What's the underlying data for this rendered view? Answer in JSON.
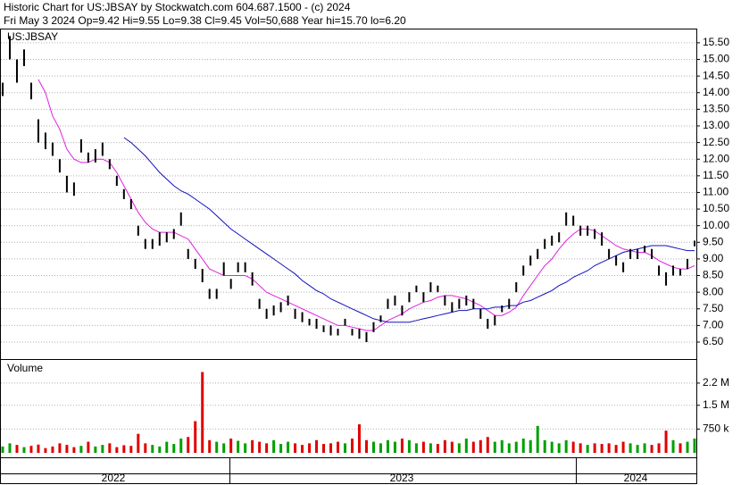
{
  "chart_data": [
    {
      "type": "hilo",
      "title": "Historic Chart for US:JBSAY by Stockwatch.com 604.687.1500 - (c) 2024",
      "subtitle": "Fri May  3 2024  Op=9.42  Hi=9.55  Lo=9.38  Cl=9.45  Vol=50,688  Year hi=15.70  lo=6.20",
      "label": "US:JBSAY",
      "x_labels": [
        "2022",
        "2023",
        "2024"
      ],
      "color": "#000000",
      "high": [
        14.3,
        15.7,
        15.0,
        15.3,
        14.3,
        13.2,
        12.8,
        12.5,
        12.0,
        11.5,
        11.3,
        12.6,
        12.2,
        12.3,
        12.5,
        12.0,
        11.5,
        11.1,
        10.8,
        10.0,
        9.6,
        9.6,
        9.8,
        9.8,
        9.9,
        10.4,
        9.3,
        9.0,
        8.7,
        8.1,
        8.1,
        8.9,
        8.4,
        8.9,
        8.9,
        8.6,
        7.8,
        7.5,
        7.6,
        7.7,
        7.9,
        7.5,
        7.4,
        7.2,
        7.2,
        7.0,
        7.0,
        6.9,
        7.2,
        6.9,
        6.9,
        6.8,
        7.1,
        7.3,
        7.8,
        7.9,
        7.6,
        8.0,
        8.2,
        8.0,
        8.3,
        8.2,
        7.9,
        7.7,
        7.8,
        7.9,
        7.8,
        7.5,
        7.2,
        7.3,
        7.6,
        7.8,
        8.3,
        8.8,
        9.1,
        9.3,
        9.6,
        9.7,
        9.8,
        10.4,
        10.3,
        10.0,
        10.0,
        9.9,
        9.8,
        9.3,
        9.1,
        8.9,
        9.3,
        9.3,
        9.4,
        9.3,
        8.8,
        8.6,
        8.8,
        8.7,
        9.0,
        9.55
      ],
      "low": [
        13.9,
        15.0,
        14.3,
        14.8,
        13.8,
        12.5,
        12.3,
        12.1,
        11.6,
        11.0,
        10.9,
        12.2,
        11.9,
        11.9,
        12.1,
        11.7,
        11.2,
        10.8,
        10.5,
        9.7,
        9.3,
        9.3,
        9.4,
        9.5,
        9.6,
        10.0,
        9.0,
        8.7,
        8.3,
        7.8,
        7.8,
        8.5,
        8.1,
        8.6,
        8.6,
        8.2,
        7.5,
        7.2,
        7.3,
        7.4,
        7.6,
        7.2,
        7.1,
        7.0,
        6.9,
        6.8,
        6.7,
        6.7,
        7.0,
        6.7,
        6.6,
        6.5,
        6.8,
        7.1,
        7.5,
        7.6,
        7.3,
        7.7,
        8.0,
        7.7,
        8.0,
        8.0,
        7.6,
        7.4,
        7.5,
        7.6,
        7.5,
        7.2,
        6.9,
        7.0,
        7.4,
        7.5,
        8.0,
        8.5,
        8.8,
        9.0,
        9.3,
        9.4,
        9.5,
        10.0,
        10.0,
        9.7,
        9.7,
        9.6,
        9.4,
        9.0,
        8.8,
        8.6,
        9.0,
        9.0,
        9.2,
        9.0,
        8.5,
        8.2,
        8.5,
        8.5,
        8.7,
        9.38
      ],
      "series": [
        {
          "color": "#e020e0",
          "values": [
            null,
            null,
            null,
            null,
            null,
            14.4,
            14.0,
            13.3,
            12.9,
            12.3,
            12.0,
            11.9,
            11.9,
            12.0,
            12.0,
            11.9,
            11.6,
            11.2,
            10.8,
            10.4,
            10.1,
            9.9,
            9.8,
            9.8,
            9.8,
            9.7,
            9.6,
            9.3,
            9.0,
            8.7,
            8.6,
            8.5,
            8.5,
            8.5,
            8.5,
            8.4,
            8.2,
            8.0,
            7.9,
            7.8,
            7.7,
            7.6,
            7.5,
            7.4,
            7.3,
            7.2,
            7.1,
            7.0,
            7.0,
            6.95,
            6.9,
            6.85,
            6.85,
            7.0,
            7.15,
            7.25,
            7.35,
            7.5,
            7.6,
            7.7,
            7.75,
            7.85,
            7.9,
            7.9,
            7.85,
            7.8,
            7.7,
            7.6,
            7.45,
            7.3,
            7.3,
            7.4,
            7.55,
            7.9,
            8.2,
            8.5,
            8.8,
            9.0,
            9.3,
            9.55,
            9.75,
            9.9,
            9.9,
            9.85,
            9.7,
            9.55,
            9.4,
            9.3,
            9.25,
            9.2,
            9.2,
            9.1,
            8.95,
            8.85,
            8.75,
            8.7,
            8.7,
            8.8
          ]
        },
        {
          "color": "#1010c0",
          "values": [
            null,
            null,
            null,
            null,
            null,
            null,
            null,
            null,
            null,
            null,
            null,
            null,
            null,
            null,
            null,
            null,
            null,
            12.65,
            12.5,
            12.3,
            12.1,
            11.85,
            11.6,
            11.4,
            11.2,
            11.05,
            10.95,
            10.8,
            10.65,
            10.5,
            10.3,
            10.1,
            9.9,
            9.75,
            9.6,
            9.45,
            9.3,
            9.15,
            9.0,
            8.85,
            8.7,
            8.55,
            8.35,
            8.2,
            8.05,
            7.95,
            7.8,
            7.7,
            7.6,
            7.5,
            7.4,
            7.3,
            7.2,
            7.15,
            7.1,
            7.1,
            7.1,
            7.1,
            7.15,
            7.2,
            7.25,
            7.3,
            7.35,
            7.4,
            7.45,
            7.45,
            7.5,
            7.5,
            7.5,
            7.55,
            7.55,
            7.6,
            7.6,
            7.7,
            7.75,
            7.85,
            7.95,
            8.05,
            8.2,
            8.3,
            8.45,
            8.55,
            8.65,
            8.8,
            8.9,
            9.0,
            9.1,
            9.2,
            9.25,
            9.3,
            9.35,
            9.4,
            9.4,
            9.4,
            9.35,
            9.3,
            9.25,
            9.25
          ]
        }
      ],
      "ylim": [
        5.99,
        15.9
      ],
      "yticks": [
        {
          "value": 6.5,
          "label": "6.50"
        },
        {
          "value": 7,
          "label": "7.00"
        },
        {
          "value": 7.5,
          "label": "7.50"
        },
        {
          "value": 8,
          "label": "8.00"
        },
        {
          "value": 8.5,
          "label": "8.50"
        },
        {
          "value": 9,
          "label": "9.00"
        },
        {
          "value": 9.5,
          "label": "9.50"
        },
        {
          "value": 10,
          "label": "10.00"
        },
        {
          "value": 10.5,
          "label": "10.50"
        },
        {
          "value": 11,
          "label": "11.00"
        },
        {
          "value": 11.5,
          "label": "11.50"
        },
        {
          "value": 12,
          "label": "12.00"
        },
        {
          "value": 12.5,
          "label": "12.50"
        },
        {
          "value": 13,
          "label": "13.00"
        },
        {
          "value": 13.5,
          "label": "13.50"
        },
        {
          "value": 14,
          "label": "14.00"
        },
        {
          "value": 14.5,
          "label": "14.50"
        },
        {
          "value": 15,
          "label": "15.00"
        },
        {
          "value": 15.5,
          "label": "15.50"
        }
      ],
      "grid": true
    },
    {
      "type": "bar",
      "label": "Volume",
      "up_color": "#00a000",
      "down_color": "#e00000",
      "values": [
        200000,
        300000,
        250000,
        180000,
        220000,
        260000,
        150000,
        200000,
        300000,
        250000,
        180000,
        220000,
        350000,
        200000,
        250000,
        300000,
        180000,
        240000,
        220000,
        600000,
        300000,
        250000,
        200000,
        350000,
        280000,
        450000,
        500000,
        1000000,
        2550000,
        400000,
        350000,
        300000,
        450000,
        380000,
        300000,
        400000,
        350000,
        300000,
        400000,
        280000,
        350000,
        300000,
        250000,
        300000,
        400000,
        280000,
        300000,
        350000,
        300000,
        450000,
        900000,
        400000,
        350000,
        300000,
        400000,
        350000,
        450000,
        400000,
        300000,
        350000,
        300000,
        280000,
        400000,
        350000,
        300000,
        450000,
        350000,
        400000,
        500000,
        350000,
        400000,
        300000,
        350000,
        450000,
        400000,
        850000,
        400000,
        350000,
        300000,
        400000,
        350000,
        300000,
        250000,
        300000,
        280000,
        300000,
        250000,
        350000,
        300000,
        250000,
        300000,
        250000,
        300000,
        700000,
        400000,
        300000,
        350000,
        450000
      ],
      "ylim": [
        0,
        2930000
      ],
      "yticks": [
        {
          "value": 750000,
          "label": "750 k"
        },
        {
          "value": 1500000,
          "label": "1.5 M"
        },
        {
          "value": 2200000,
          "label": "2.2 M"
        }
      ],
      "grid": true
    }
  ]
}
